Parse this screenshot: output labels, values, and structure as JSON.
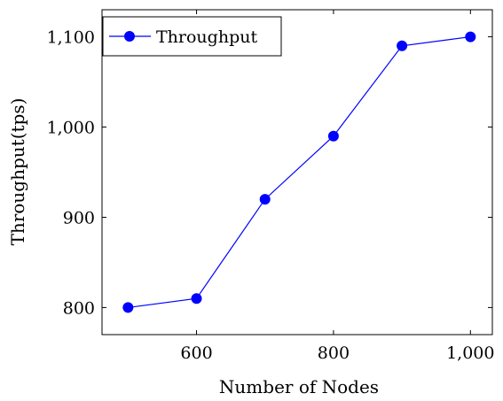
{
  "chart_data": {
    "type": "line",
    "xlabel": "Number of Nodes",
    "ylabel": "Throughput(tps)",
    "xlim": [
      462,
      1032
    ],
    "ylim": [
      770,
      1130
    ],
    "x_ticks": [
      600,
      800,
      1000
    ],
    "x_tick_labels": [
      "600",
      "800",
      "1,000"
    ],
    "y_ticks": [
      800,
      900,
      1000,
      1100
    ],
    "y_tick_labels": [
      "800",
      "900",
      "1,000",
      "1,100"
    ],
    "grid": false,
    "legend_position": "top-left",
    "series": [
      {
        "name": "Throughput",
        "color": "#0000ff",
        "marker": "circle",
        "x": [
          500,
          600,
          700,
          800,
          900,
          1000
        ],
        "y": [
          800,
          810,
          920,
          990,
          1090,
          1100
        ]
      }
    ]
  }
}
